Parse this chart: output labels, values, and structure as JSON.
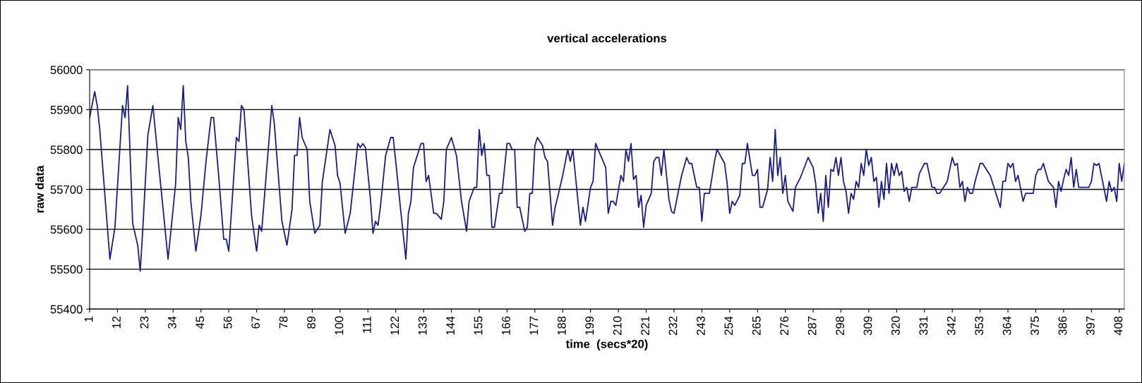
{
  "chart_data": {
    "type": "line",
    "title": "vertical accelerations",
    "xlabel": "time  (secs*20)",
    "ylabel": "raw data",
    "series": [
      {
        "color": "#1c1c85",
        "x": [
          1,
          3,
          4,
          5,
          9,
          11,
          14,
          15,
          16,
          18,
          20,
          21,
          22,
          24,
          26,
          28,
          32,
          35,
          36,
          37,
          38,
          39,
          40,
          41,
          43,
          45,
          47,
          49,
          50,
          52,
          54,
          55,
          56,
          59,
          60,
          61,
          62,
          65,
          67,
          68,
          69,
          73,
          74,
          77,
          79,
          81,
          82,
          83,
          84,
          85,
          87,
          88,
          90,
          92,
          93,
          96,
          98,
          99,
          100,
          102,
          104,
          107,
          108,
          109,
          110,
          112,
          113,
          114,
          115,
          116,
          118,
          120,
          121,
          122,
          124,
          126,
          127,
          128,
          129,
          132,
          133,
          134,
          135,
          137,
          138,
          140,
          141,
          142,
          144,
          146,
          148,
          150,
          151,
          153,
          154,
          155,
          156,
          157,
          158,
          159,
          160,
          161,
          163,
          164,
          166,
          167,
          168,
          169,
          170,
          171,
          173,
          174,
          175,
          176,
          177,
          178,
          180,
          181,
          182,
          184,
          185,
          186,
          188,
          190,
          191,
          192,
          195,
          196,
          197,
          199,
          200,
          201,
          203,
          205,
          206,
          207,
          208,
          209,
          211,
          212,
          213,
          214,
          215,
          216,
          217,
          218,
          219,
          220,
          221,
          223,
          224,
          225,
          226,
          227,
          228,
          230,
          231,
          232,
          235,
          237,
          238,
          239,
          241,
          242,
          243,
          244,
          246,
          248,
          249,
          252,
          253,
          254,
          255,
          256,
          258,
          259,
          260,
          261,
          263,
          264,
          265,
          266,
          267,
          269,
          270,
          271,
          272,
          273,
          274,
          275,
          276,
          277,
          279,
          280,
          282,
          285,
          287,
          288,
          289,
          290,
          291,
          292,
          293,
          294,
          295,
          296,
          297,
          298,
          299,
          300,
          301,
          302,
          303,
          304,
          305,
          306,
          307,
          308,
          309,
          310,
          311,
          312,
          313,
          314,
          315,
          316,
          317,
          318,
          319,
          320,
          321,
          322,
          323,
          324,
          325,
          326,
          328,
          329,
          331,
          332,
          334,
          335,
          336,
          337,
          338,
          340,
          342,
          343,
          344,
          345,
          346,
          347,
          348,
          349,
          350,
          351,
          353,
          354,
          357,
          358,
          361,
          362,
          363,
          364,
          365,
          366,
          367,
          368,
          370,
          371,
          374,
          375,
          376,
          377,
          378,
          380,
          382,
          383,
          384,
          385,
          386,
          387,
          388,
          389,
          390,
          391,
          392,
          396,
          397,
          398,
          399,
          400,
          403,
          404,
          405,
          406,
          407,
          408,
          409,
          410
        ],
        "values": [
          55880,
          55945,
          55910,
          55850,
          55525,
          55605,
          55910,
          55880,
          55960,
          55615,
          55560,
          55495,
          55600,
          55835,
          55910,
          55780,
          55525,
          55715,
          55880,
          55850,
          55960,
          55820,
          55780,
          55670,
          55545,
          55635,
          55770,
          55880,
          55880,
          55735,
          55575,
          55575,
          55545,
          55830,
          55820,
          55910,
          55900,
          55635,
          55545,
          55610,
          55595,
          55910,
          55865,
          55620,
          55560,
          55650,
          55785,
          55785,
          55880,
          55830,
          55800,
          55670,
          55590,
          55610,
          55720,
          55850,
          55810,
          55735,
          55715,
          55590,
          55640,
          55815,
          55805,
          55815,
          55805,
          55675,
          55590,
          55620,
          55610,
          55660,
          55785,
          55830,
          55830,
          55770,
          55645,
          55525,
          55640,
          55670,
          55755,
          55815,
          55815,
          55720,
          55735,
          55640,
          55640,
          55625,
          55670,
          55800,
          55830,
          55785,
          55670,
          55595,
          55670,
          55705,
          55705,
          55850,
          55785,
          55815,
          55735,
          55735,
          55605,
          55605,
          55690,
          55690,
          55815,
          55815,
          55800,
          55800,
          55655,
          55655,
          55595,
          55605,
          55690,
          55690,
          55810,
          55830,
          55810,
          55780,
          55770,
          55610,
          55655,
          55680,
          55735,
          55800,
          55770,
          55800,
          55610,
          55655,
          55620,
          55705,
          55720,
          55815,
          55785,
          55755,
          55640,
          55670,
          55670,
          55660,
          55735,
          55720,
          55800,
          55770,
          55815,
          55725,
          55735,
          55655,
          55685,
          55605,
          55660,
          55690,
          55770,
          55780,
          55780,
          55735,
          55800,
          55675,
          55645,
          55640,
          55735,
          55780,
          55765,
          55765,
          55705,
          55705,
          55620,
          55690,
          55690,
          55770,
          55800,
          55765,
          55715,
          55640,
          55670,
          55660,
          55685,
          55765,
          55765,
          55815,
          55735,
          55735,
          55750,
          55655,
          55655,
          55700,
          55780,
          55720,
          55850,
          55735,
          55780,
          55690,
          55735,
          55670,
          55645,
          55705,
          55730,
          55780,
          55755,
          55715,
          55640,
          55690,
          55620,
          55735,
          55655,
          55750,
          55745,
          55780,
          55735,
          55780,
          55720,
          55695,
          55640,
          55690,
          55675,
          55720,
          55705,
          55765,
          55735,
          55800,
          55760,
          55780,
          55720,
          55730,
          55655,
          55720,
          55675,
          55765,
          55690,
          55765,
          55735,
          55765,
          55735,
          55745,
          55695,
          55705,
          55670,
          55705,
          55705,
          55740,
          55765,
          55765,
          55705,
          55705,
          55690,
          55690,
          55700,
          55720,
          55780,
          55760,
          55765,
          55705,
          55720,
          55670,
          55705,
          55690,
          55690,
          55720,
          55765,
          55765,
          55735,
          55715,
          55655,
          55720,
          55720,
          55765,
          55755,
          55765,
          55720,
          55735,
          55670,
          55690,
          55690,
          55735,
          55750,
          55750,
          55765,
          55720,
          55705,
          55655,
          55720,
          55695,
          55725,
          55750,
          55735,
          55780,
          55705,
          55750,
          55705,
          55705,
          55720,
          55765,
          55760,
          55765,
          55670,
          55720,
          55695,
          55705,
          55670,
          55765,
          55720,
          55765
        ]
      }
    ],
    "xlim": [
      1,
      410
    ],
    "xticks": [
      1,
      12,
      23,
      34,
      45,
      56,
      67,
      78,
      89,
      100,
      111,
      122,
      133,
      144,
      155,
      166,
      177,
      188,
      199,
      210,
      221,
      232,
      243,
      254,
      265,
      276,
      287,
      298,
      309,
      320,
      331,
      342,
      353,
      364,
      375,
      386,
      397,
      408
    ],
    "ylim": [
      55400,
      56000
    ],
    "yticks": [
      55400,
      55500,
      55600,
      55700,
      55800,
      55900,
      56000
    ],
    "grid": "y",
    "marker": "none",
    "line_style": "solid"
  }
}
